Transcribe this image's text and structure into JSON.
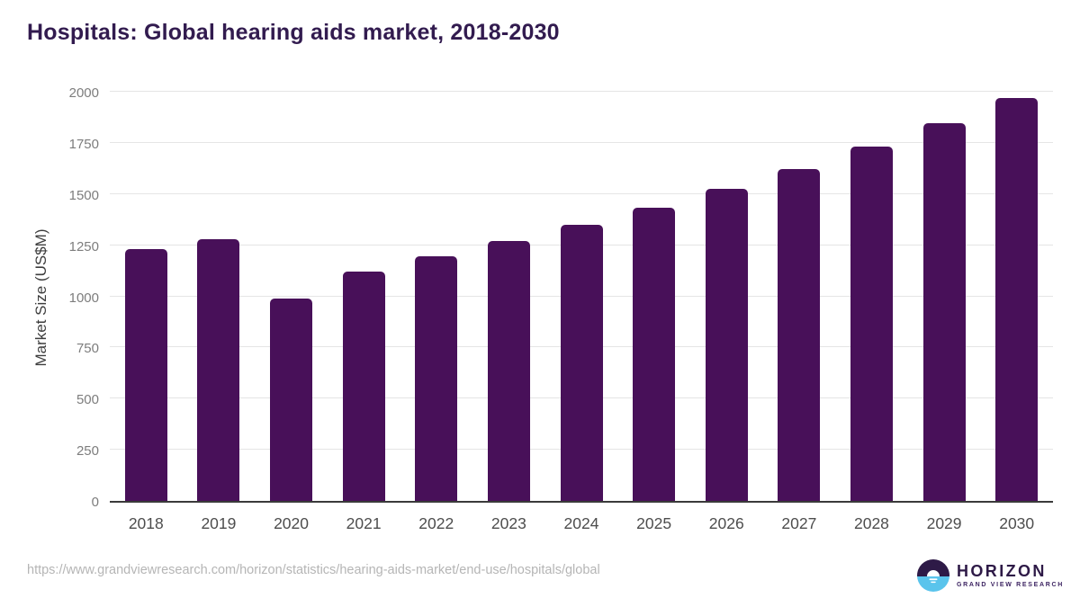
{
  "page": {
    "title": "Hospitals: Global hearing aids market, 2018-2030"
  },
  "chart_data": {
    "type": "bar",
    "title": "Hospitals: Global hearing aids market, 2018-2030",
    "categories": [
      "2018",
      "2019",
      "2020",
      "2021",
      "2022",
      "2023",
      "2024",
      "2025",
      "2026",
      "2027",
      "2028",
      "2029",
      "2030"
    ],
    "values": [
      1230,
      1280,
      990,
      1120,
      1195,
      1270,
      1350,
      1435,
      1525,
      1620,
      1730,
      1845,
      1970
    ],
    "xlabel": "",
    "ylabel": "Market Size (US$M)",
    "ylim": [
      0,
      2000
    ],
    "yticks": [
      0,
      250,
      500,
      750,
      1000,
      1250,
      1500,
      1750,
      2000
    ],
    "grid": true,
    "legend": "none",
    "bar_color": "#481059"
  },
  "footer": {
    "source_url": "https://www.grandviewresearch.com/horizon/statistics/hearing-aids-market/end-use/hospitals/global",
    "logo": {
      "name": "HORIZON",
      "subtitle": "GRAND VIEW RESEARCH",
      "icon": "horizon-sun-circle-icon",
      "purple": "#2e1a47",
      "blue": "#5ac4ec"
    }
  },
  "colors": {
    "title_text": "#321b4f",
    "bar": "#481059",
    "gridline": "#e5e5e5",
    "axis_line": "#3a3a3a",
    "ytick_text": "#7d7d7d",
    "xtick_text": "#4d4d4d",
    "url_text": "#b5b5b5",
    "background": "#ffffff"
  }
}
